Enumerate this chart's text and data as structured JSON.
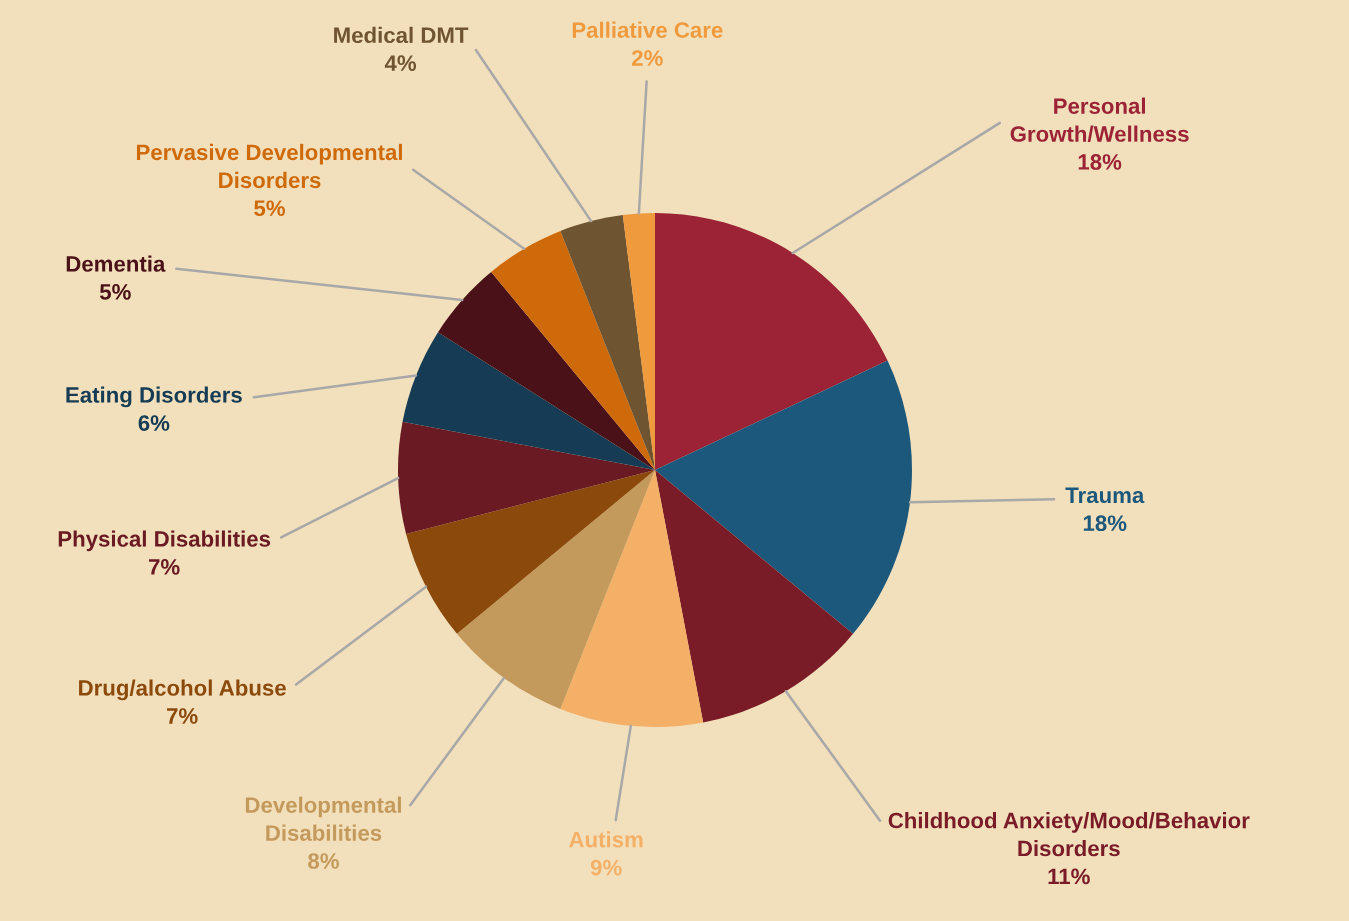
{
  "chart_data": {
    "type": "pie",
    "categories": [
      "Personal\nGrowth/Wellness",
      "Trauma",
      "Childhood Anxiety/Mood/Behavior\nDisorders",
      "Autism",
      "Developmental\nDisabilities",
      "Drug/alcohol Abuse",
      "Physical Disabilities",
      "Eating Disorders",
      "Dementia",
      "Pervasive Developmental\nDisorders",
      "Medical DMT",
      "Palliative Care"
    ],
    "values": [
      18,
      18,
      11,
      9,
      8,
      7,
      7,
      6,
      5,
      5,
      4,
      2
    ],
    "value_labels": [
      "18%",
      "18%",
      "11%",
      "9%",
      "8%",
      "7%",
      "7%",
      "6%",
      "5%",
      "5%",
      "4%",
      "2%"
    ],
    "colors": [
      "#9b2335",
      "#1b587c",
      "#7a1c28",
      "#f5b067",
      "#c49a5c",
      "#8b4a0c",
      "#6a1a22",
      "#153c54",
      "#4a1218",
      "#cf6a0a",
      "#6e5430",
      "#f09a3e"
    ],
    "legend": false
  }
}
